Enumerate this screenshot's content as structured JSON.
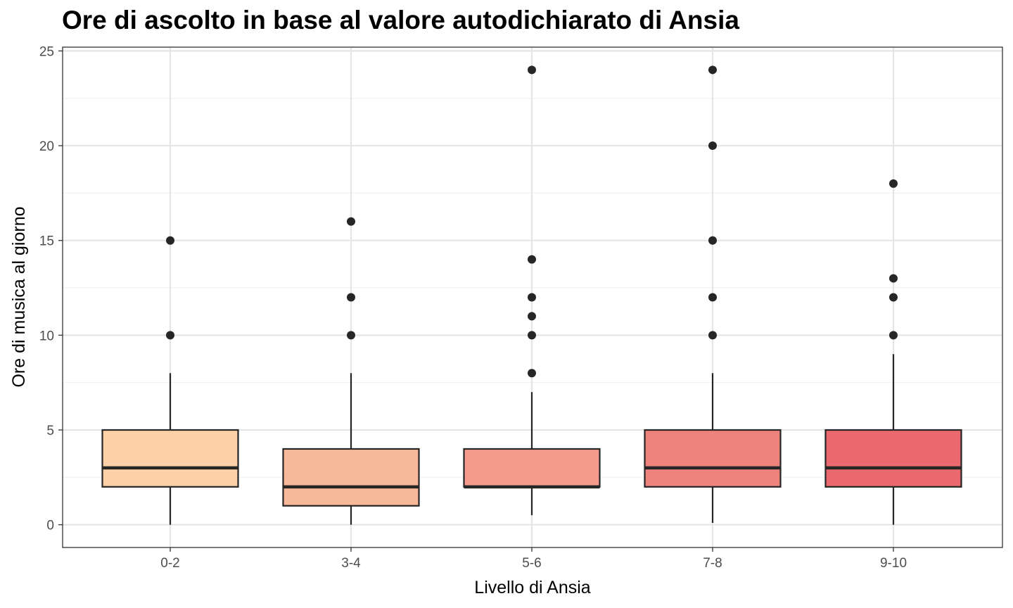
{
  "chart_data": {
    "type": "boxplot",
    "title": "Ore di ascolto in base al valore autodichiarato di Ansia",
    "xlabel": "Livello di Ansia",
    "ylabel": "Ore di musica al giorno",
    "ylim": [
      -1.2,
      25.2
    ],
    "yticks": [
      0,
      5,
      10,
      15,
      20,
      25
    ],
    "grid": true,
    "legend": "none",
    "categories": [
      "0-2",
      "3-4",
      "5-6",
      "7-8",
      "9-10"
    ],
    "boxes": [
      {
        "category": "0-2",
        "whisker_low": 0,
        "q1": 2,
        "median": 3,
        "q3": 5,
        "whisker_high": 8,
        "outliers": [
          10,
          15
        ],
        "color": "#FDD0A8"
      },
      {
        "category": "3-4",
        "whisker_low": 0,
        "q1": 1,
        "median": 2,
        "q3": 4,
        "whisker_high": 8,
        "outliers": [
          10,
          12,
          16
        ],
        "color": "#F8B89A"
      },
      {
        "category": "5-6",
        "whisker_low": 0.5,
        "q1": 2,
        "median": 2,
        "q3": 4,
        "whisker_high": 7,
        "outliers": [
          8,
          10,
          11,
          12,
          14,
          24
        ],
        "color": "#F49B8E"
      },
      {
        "category": "7-8",
        "whisker_low": 0.1,
        "q1": 2,
        "median": 3,
        "q3": 5,
        "whisker_high": 8,
        "outliers": [
          10,
          12,
          15,
          20,
          24
        ],
        "color": "#EE827D"
      },
      {
        "category": "9-10",
        "whisker_low": 0,
        "q1": 2,
        "median": 3,
        "q3": 5,
        "whisker_high": 9,
        "outliers": [
          10,
          12,
          13,
          18
        ],
        "color": "#E9696E"
      }
    ],
    "colors": {
      "outline": "#262626",
      "grid_major": "#E5E5E5",
      "grid_minor": "#F0F0F0",
      "panel_border": "#333333"
    }
  }
}
